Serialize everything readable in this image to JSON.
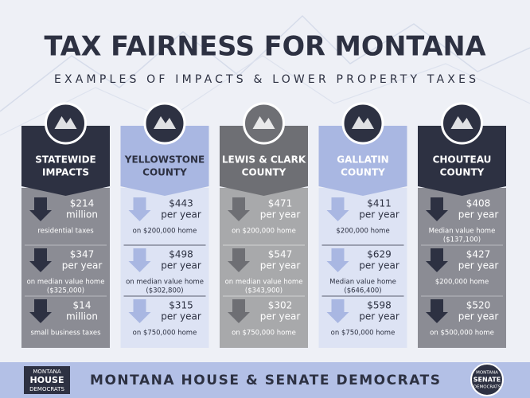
{
  "header": {
    "title": "TAX FAIRNESS FOR MONTANA",
    "subtitle": "EXAMPLES OF IMPACTS & LOWER PROPERTY TAXES"
  },
  "columns": [
    {
      "name": [
        "STATEWIDE",
        "IMPACTS"
      ],
      "items": [
        {
          "amount": "$214",
          "unit": "million",
          "note": [
            "residential taxes"
          ]
        },
        {
          "amount": "$347",
          "unit": "per year",
          "note": [
            "on median value home",
            "($325,000)"
          ]
        },
        {
          "amount": "$14",
          "unit": "million",
          "note": [
            "small business taxes"
          ]
        }
      ]
    },
    {
      "name": [
        "YELLOWSTONE",
        "COUNTY"
      ],
      "items": [
        {
          "amount": "$443",
          "unit": "per year",
          "note": [
            "on $200,000 home"
          ]
        },
        {
          "amount": "$498",
          "unit": "per year",
          "note": [
            "on median value home",
            "($302,800)"
          ]
        },
        {
          "amount": "$315",
          "unit": "per year",
          "note": [
            "on $750,000 home"
          ]
        }
      ]
    },
    {
      "name": [
        "LEWIS & CLARK",
        "COUNTY"
      ],
      "items": [
        {
          "amount": "$471",
          "unit": "per year",
          "note": [
            "on $200,000 home"
          ]
        },
        {
          "amount": "$547",
          "unit": "per year",
          "note": [
            "on median value home",
            "($343,900)"
          ]
        },
        {
          "amount": "$302",
          "unit": "per year",
          "note": [
            "on $750,000 home"
          ]
        }
      ]
    },
    {
      "name": [
        "GALLATIN",
        "COUNTY"
      ],
      "items": [
        {
          "amount": "$411",
          "unit": "per year",
          "note": [
            "$200,000 home"
          ]
        },
        {
          "amount": "$629",
          "unit": "per year",
          "note": [
            "Median value home",
            "($646,400)"
          ]
        },
        {
          "amount": "$598",
          "unit": "per year",
          "note": [
            "on $750,000 home"
          ]
        }
      ]
    },
    {
      "name": [
        "CHOUTEAU",
        "COUNTY"
      ],
      "items": [
        {
          "amount": "$408",
          "unit": "per year",
          "note": [
            "Median value home",
            "($137,100)"
          ]
        },
        {
          "amount": "$427",
          "unit": "per year",
          "note": [
            "$200,000 home"
          ]
        },
        {
          "amount": "$520",
          "unit": "per year",
          "note": [
            "on $500,000 home"
          ]
        }
      ]
    }
  ],
  "footer": {
    "text": "MONTANA HOUSE & SENATE DEMOCRATS",
    "left_logo": [
      "MONTANA",
      "HOUSE",
      "DEMOCRATS"
    ],
    "right_logo": [
      "MONTANA",
      "SENATE",
      "DEMOCRATS"
    ]
  }
}
